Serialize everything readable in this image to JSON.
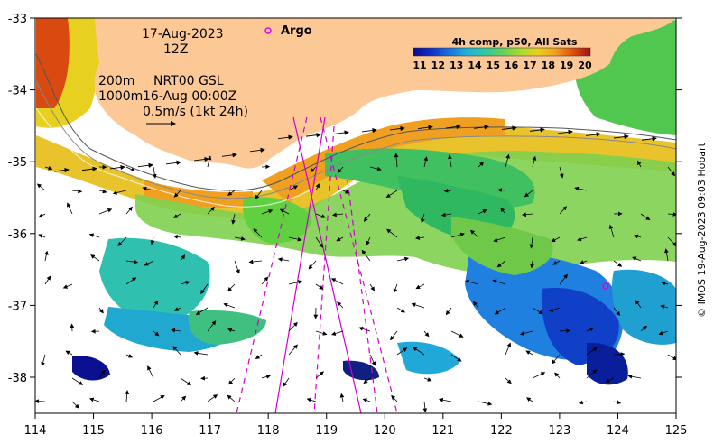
{
  "map": {
    "date": "17-Aug-2023",
    "hour": "12Z",
    "depth_contours": "200m",
    "depth_contours_2": "1000m",
    "model": "NRT00 GSL",
    "model_time": "16-Aug 00:00Z",
    "vector_scale": "0.5m/s (1kt 24h)",
    "argo_label": "Argo",
    "credit": "© IMOS 19-Aug-2023 09:03 Hobart",
    "land_color": "#fcc996",
    "argo_color": "#e000e0",
    "track_color": "#d000d0"
  },
  "colorbar": {
    "title": "4h comp, p50, All Sats",
    "ticks": [
      "11",
      "12",
      "13",
      "14",
      "15",
      "16",
      "17",
      "18",
      "19",
      "20"
    ],
    "colors": [
      "#0a0a8c",
      "#1030c8",
      "#1a70e0",
      "#20b0d8",
      "#30c8a0",
      "#60d060",
      "#a8d830",
      "#e8d020",
      "#f0a020",
      "#e05010",
      "#a01010"
    ]
  },
  "axes": {
    "x_ticks": [
      "114",
      "115",
      "116",
      "117",
      "118",
      "119",
      "120",
      "121",
      "122",
      "123",
      "124",
      "125"
    ],
    "y_ticks": [
      "-33",
      "-34",
      "-35",
      "-36",
      "-37",
      "-38"
    ]
  }
}
